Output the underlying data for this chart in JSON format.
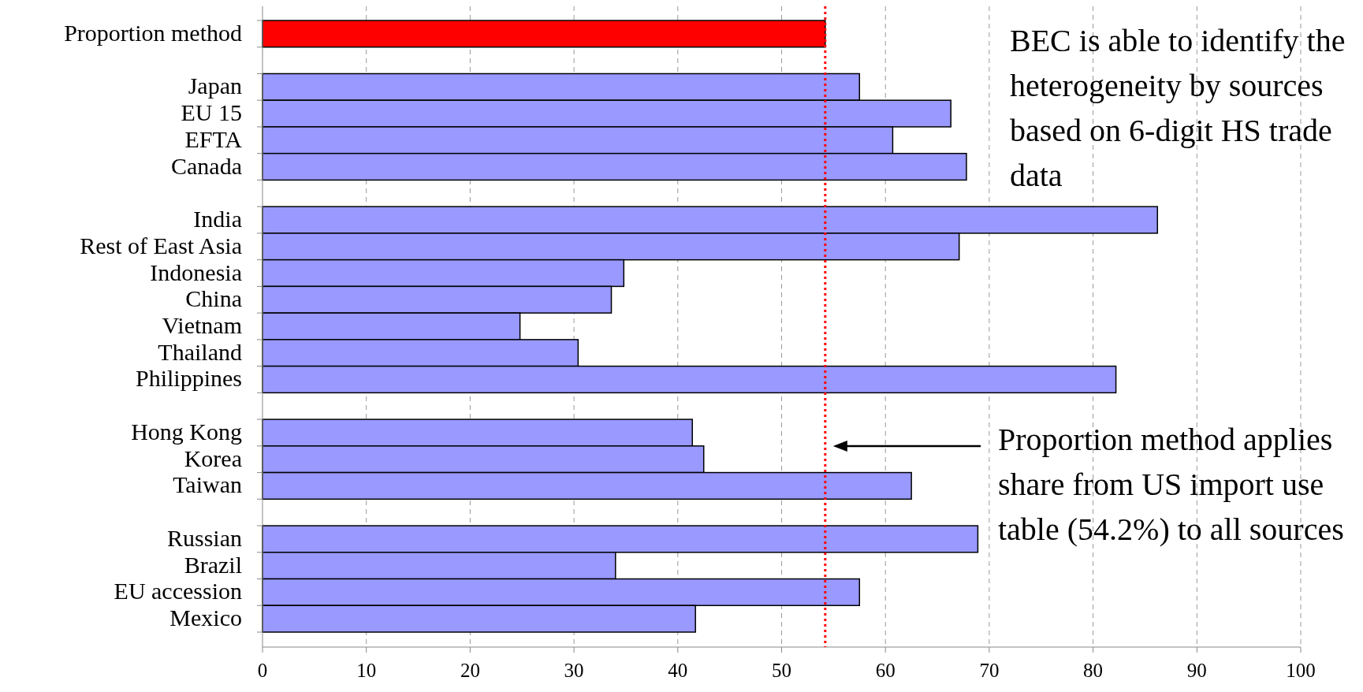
{
  "chart_data": {
    "type": "bar",
    "orientation": "horizontal",
    "categories": [
      "Proportion method",
      null,
      "Japan",
      "EU 15",
      "EFTA",
      "Canada",
      null,
      "India",
      "Rest of East Asia",
      "Indonesia",
      "China",
      "Vietnam",
      "Thailand",
      "Philippines",
      null,
      "Hong Kong",
      "Korea",
      "Taiwan",
      null,
      "Russian",
      "Brazil",
      "EU accession",
      "Mexico"
    ],
    "values": [
      54.2,
      null,
      57.5,
      66.3,
      60.7,
      67.8,
      null,
      86.2,
      67.1,
      34.8,
      33.6,
      24.8,
      30.4,
      82.2,
      null,
      41.4,
      42.5,
      62.5,
      null,
      68.9,
      34,
      57.5,
      41.7
    ],
    "colors": [
      "#ff0000",
      null,
      "#9999ff",
      "#9999ff",
      "#9999ff",
      "#9999ff",
      null,
      "#9999ff",
      "#9999ff",
      "#9999ff",
      "#9999ff",
      "#9999ff",
      "#9999ff",
      "#9999ff",
      null,
      "#9999ff",
      "#9999ff",
      "#9999ff",
      null,
      "#9999ff",
      "#9999ff",
      "#9999ff",
      "#9999ff"
    ],
    "xlim": [
      0,
      100
    ],
    "xticks": [
      0,
      10,
      20,
      30,
      40,
      50,
      60,
      70,
      80,
      90,
      100
    ],
    "grid": "x",
    "ref_lines": [
      {
        "axis": "x",
        "value": 54.2,
        "color": "#ff0000",
        "line_style": "dotted"
      }
    ],
    "annotations": [
      "BEC is able to identify the heterogeneity by sources based on 6-digit HS trade data",
      "Proportion method applies share from US import use table (54.2%) to all sources"
    ]
  }
}
